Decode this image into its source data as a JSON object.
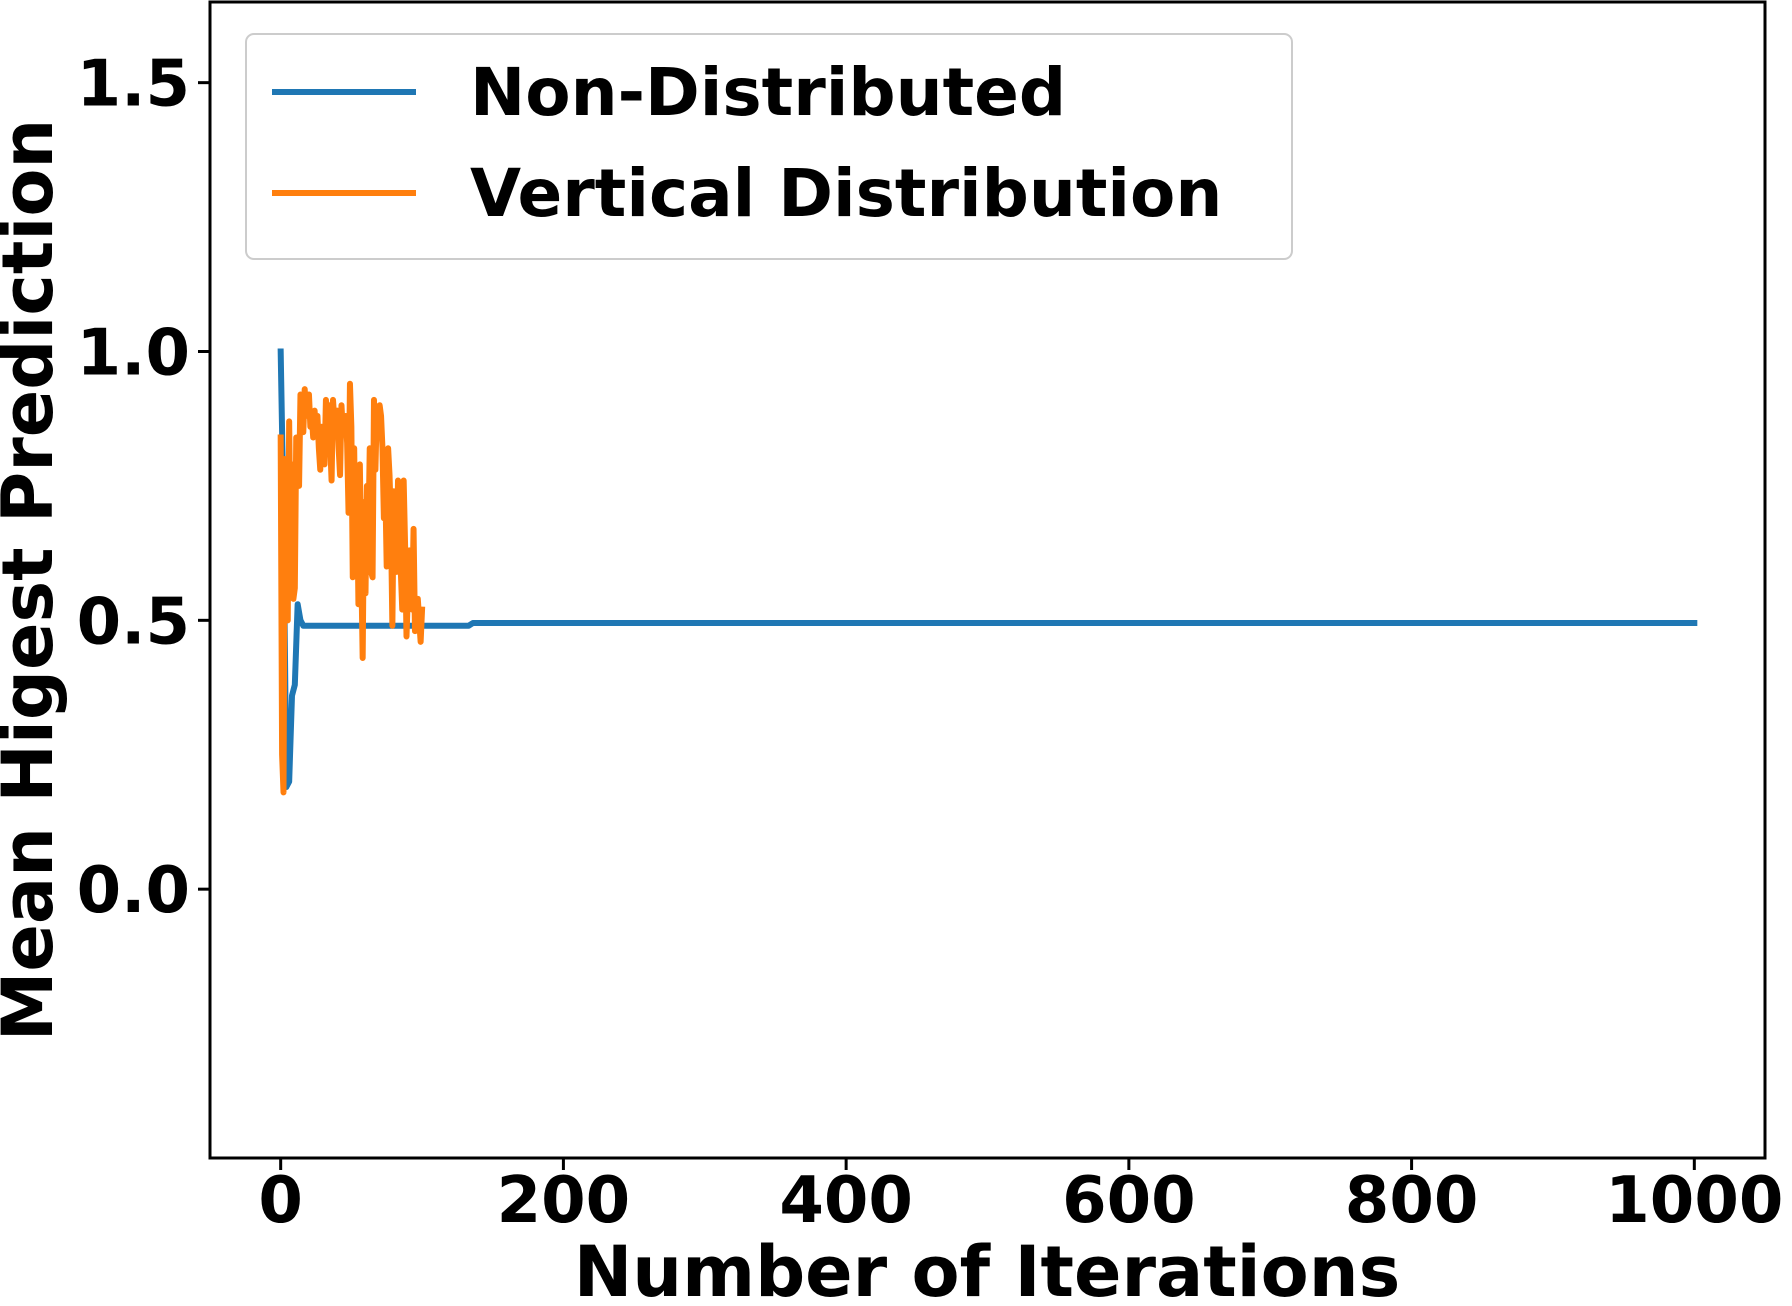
{
  "chart_data": {
    "type": "line",
    "title": "",
    "xlabel": "Number of Iterations",
    "ylabel": "Mean Higest Prediction",
    "xlim": [
      -50,
      1050
    ],
    "ylim": [
      -0.5,
      1.65
    ],
    "xticks": [
      0,
      200,
      400,
      600,
      800,
      1000
    ],
    "xtick_labels": [
      "0",
      "200",
      "400",
      "600",
      "800",
      "1000"
    ],
    "yticks": [
      0.0,
      0.5,
      1.0,
      1.5
    ],
    "ytick_labels": [
      "0.0",
      "0.5",
      "1.0",
      "1.5"
    ],
    "grid": false,
    "legend_position": "top-left",
    "series": [
      {
        "name": "Non-Distributed",
        "color": "#1f77b4",
        "x": [
          0,
          2,
          4,
          6,
          8,
          10,
          12,
          14,
          16,
          20,
          40,
          60,
          80,
          100,
          120,
          130,
          133,
          136,
          150,
          200,
          300,
          400,
          500,
          600,
          700,
          800,
          900,
          1000
        ],
        "y": [
          1.0,
          0.7,
          0.19,
          0.2,
          0.36,
          0.38,
          0.53,
          0.5,
          0.49,
          0.49,
          0.49,
          0.49,
          0.49,
          0.49,
          0.49,
          0.49,
          0.49,
          0.495,
          0.495,
          0.495,
          0.495,
          0.495,
          0.495,
          0.495,
          0.495,
          0.495,
          0.495,
          0.495
        ]
      },
      {
        "name": "Vertical Distribution",
        "color": "#ff7f0e",
        "x": [
          0,
          1,
          2,
          3,
          4,
          5,
          6,
          7,
          8,
          9,
          10,
          11,
          12,
          13,
          14,
          15,
          16,
          17,
          18,
          19,
          20,
          21,
          22,
          23,
          24,
          25,
          26,
          27,
          28,
          29,
          30,
          31,
          32,
          33,
          34,
          35,
          36,
          37,
          38,
          39,
          40,
          41,
          42,
          43,
          44,
          45,
          46,
          47,
          48,
          49,
          50,
          51,
          52,
          53,
          54,
          55,
          56,
          57,
          58,
          59,
          60,
          61,
          62,
          63,
          64,
          65,
          66,
          67,
          68,
          69,
          70,
          71,
          72,
          73,
          74,
          75,
          76,
          77,
          78,
          79,
          80,
          81,
          82,
          83,
          84,
          85,
          86,
          87,
          88,
          89,
          90,
          91,
          92,
          93,
          94,
          95,
          96,
          97,
          98,
          99,
          100
        ],
        "y": [
          0.84,
          0.25,
          0.18,
          0.8,
          0.7,
          0.5,
          0.87,
          0.62,
          0.79,
          0.54,
          0.56,
          0.84,
          0.83,
          0.75,
          0.92,
          0.89,
          0.85,
          0.93,
          0.88,
          0.91,
          0.92,
          0.86,
          0.88,
          0.84,
          0.89,
          0.85,
          0.88,
          0.82,
          0.78,
          0.86,
          0.83,
          0.79,
          0.91,
          0.88,
          0.9,
          0.83,
          0.76,
          0.91,
          0.87,
          0.85,
          0.89,
          0.82,
          0.77,
          0.9,
          0.85,
          0.86,
          0.88,
          0.83,
          0.7,
          0.94,
          0.86,
          0.58,
          0.82,
          0.6,
          0.75,
          0.53,
          0.79,
          0.6,
          0.43,
          0.72,
          0.55,
          0.75,
          0.65,
          0.82,
          0.59,
          0.58,
          0.91,
          0.78,
          0.89,
          0.85,
          0.9,
          0.88,
          0.82,
          0.69,
          0.75,
          0.6,
          0.82,
          0.77,
          0.68,
          0.49,
          0.74,
          0.66,
          0.59,
          0.76,
          0.65,
          0.59,
          0.52,
          0.76,
          0.64,
          0.47,
          0.55,
          0.63,
          0.6,
          0.52,
          0.67,
          0.48,
          0.5,
          0.54,
          0.5,
          0.46,
          0.52
        ]
      }
    ]
  }
}
